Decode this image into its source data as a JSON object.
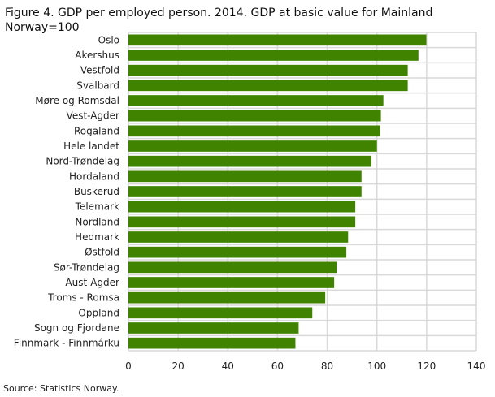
{
  "chart_data": {
    "type": "bar",
    "orientation": "horizontal",
    "title": "Figure 4.  GDP per employed person. 2014. GDP at basic value for Mainland Norway=100",
    "source": "Source: Statistics Norway.",
    "categories": [
      "Oslo",
      "Akershus",
      "Vestfold",
      "Svalbard",
      "Møre og Romsdal",
      "Vest-Agder",
      "Rogaland",
      "Hele landet",
      "Nord-Trøndelag",
      "Hordaland",
      "Buskerud",
      "Telemark",
      "Nordland",
      "Hedmark",
      "Østfold",
      "Sør-Trøndelag",
      "Aust-Agder",
      "Troms - Romsa",
      "Oppland",
      "Sogn og Fjordane",
      "Finnmark - Finnmárku"
    ],
    "values": [
      119.9,
      116.7,
      112.4,
      112.4,
      102.6,
      101.6,
      101.3,
      100.0,
      97.7,
      93.8,
      93.8,
      91.3,
      91.3,
      88.4,
      87.7,
      83.8,
      82.8,
      79.2,
      74.0,
      68.5,
      67.2
    ],
    "xlim": [
      0,
      140
    ],
    "xticks": [
      "0",
      "20",
      "40",
      "60",
      "80",
      "100",
      "120",
      "140"
    ],
    "grid": true,
    "bar_color": "#3f8300",
    "grid_color": "#d9d9d9"
  }
}
